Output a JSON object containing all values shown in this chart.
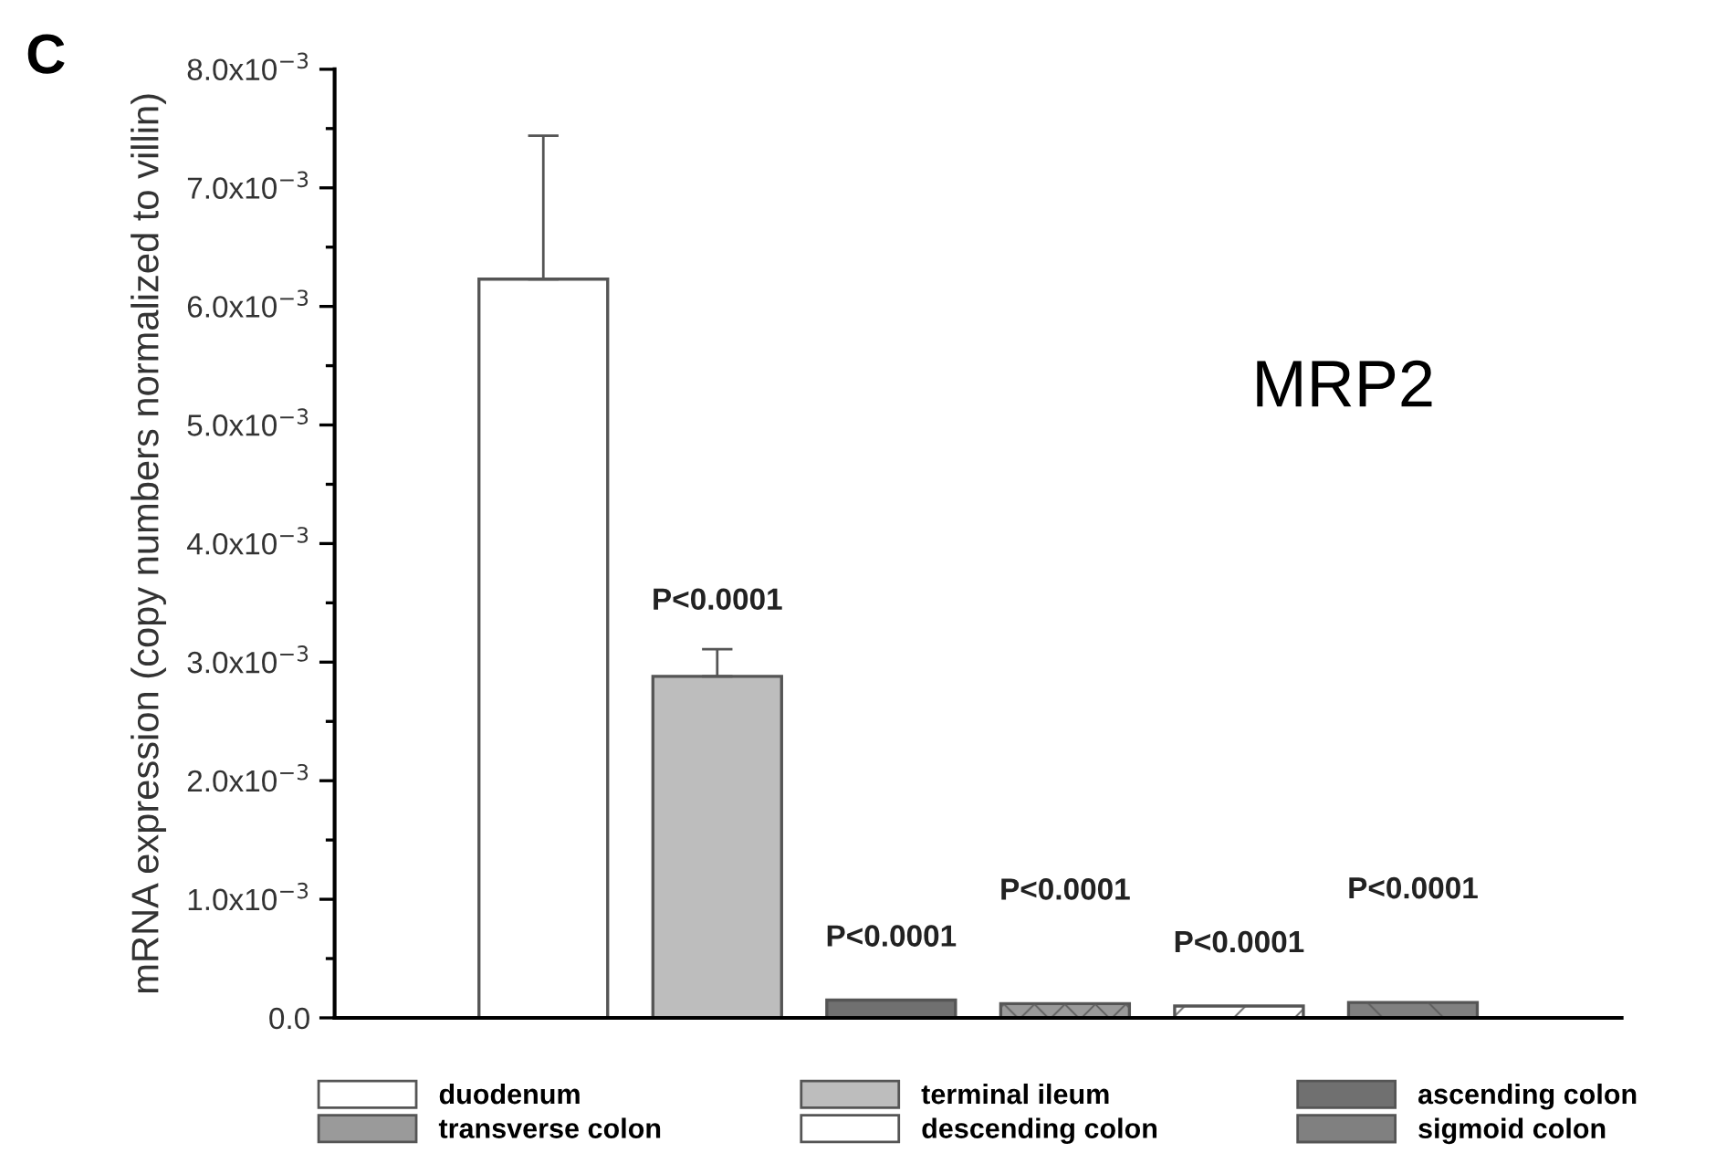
{
  "chart_data": {
    "type": "bar",
    "ylabel": "mRNA expression (copy numbers normalized to villin)",
    "categories": [
      null,
      null,
      null,
      null,
      null,
      null
    ],
    "series": [
      {
        "name": "duodenum",
        "color": "#ffffff",
        "values": [
          0.00623,
          null,
          null,
          null,
          null,
          null
        ],
        "errors": [
          [
            0.00623,
            0.00744
          ],
          null,
          null,
          null,
          null,
          null
        ]
      },
      {
        "name": "terminal ileum",
        "color": "#bdbdbd",
        "values": [
          null,
          0.00288,
          null,
          null,
          null,
          null
        ],
        "errors": [
          null,
          [
            0.00288,
            0.00311
          ],
          null,
          null,
          null,
          null
        ]
      },
      {
        "name": "ascending colon",
        "color": "#707070",
        "values": [
          null,
          null,
          0.00015,
          null,
          null,
          null
        ]
      },
      {
        "name": "transverse colon",
        "color": "#9a9a9a",
        "values": [
          null,
          null,
          null,
          0.00012,
          null,
          null
        ]
      },
      {
        "name": "descending colon",
        "color": "#ffffff",
        "values": [
          null,
          null,
          null,
          null,
          0.0001,
          null
        ]
      },
      {
        "name": "sigmoid colon",
        "color": "#808080",
        "values": [
          null,
          null,
          null,
          null,
          null,
          0.00013
        ]
      }
    ],
    "annotations": [
      "C",
      "MRP2",
      "P<0.0001",
      "P<0.0001",
      "P<0.0001",
      "P<0.0001",
      "P<0.0001"
    ],
    "ylim": [
      0,
      0.008
    ],
    "yticks": [
      {
        "value": 0,
        "label": "0.0"
      },
      {
        "value": 0.0005,
        "label": null
      },
      {
        "value": 0.001,
        "label": "1.0x10$^{−3}$"
      },
      {
        "value": 0.0015,
        "label": null
      },
      {
        "value": 0.002,
        "label": "2.0x10$^{−3}$"
      },
      {
        "value": 0.0025,
        "label": null
      },
      {
        "value": 0.003,
        "label": "3.0x10$^{−3}$"
      },
      {
        "value": 0.0035,
        "label": null
      },
      {
        "value": 0.004,
        "label": "4.0x10$^{−3}$"
      },
      {
        "value": 0.0045,
        "label": null
      },
      {
        "value": 0.005,
        "label": "5.0x10$^{−3}$"
      },
      {
        "value": 0.0055,
        "label": null
      },
      {
        "value": 0.006,
        "label": "6.0x10$^{−3}$"
      },
      {
        "value": 0.0065,
        "label": null
      },
      {
        "value": 0.007,
        "label": "7.0x10$^{−3}$"
      },
      {
        "value": 0.0075,
        "label": null
      },
      {
        "value": 0.008,
        "label": "8.0x10$^{−3}$"
      }
    ],
    "legend": "bottom",
    "grid": false
  }
}
